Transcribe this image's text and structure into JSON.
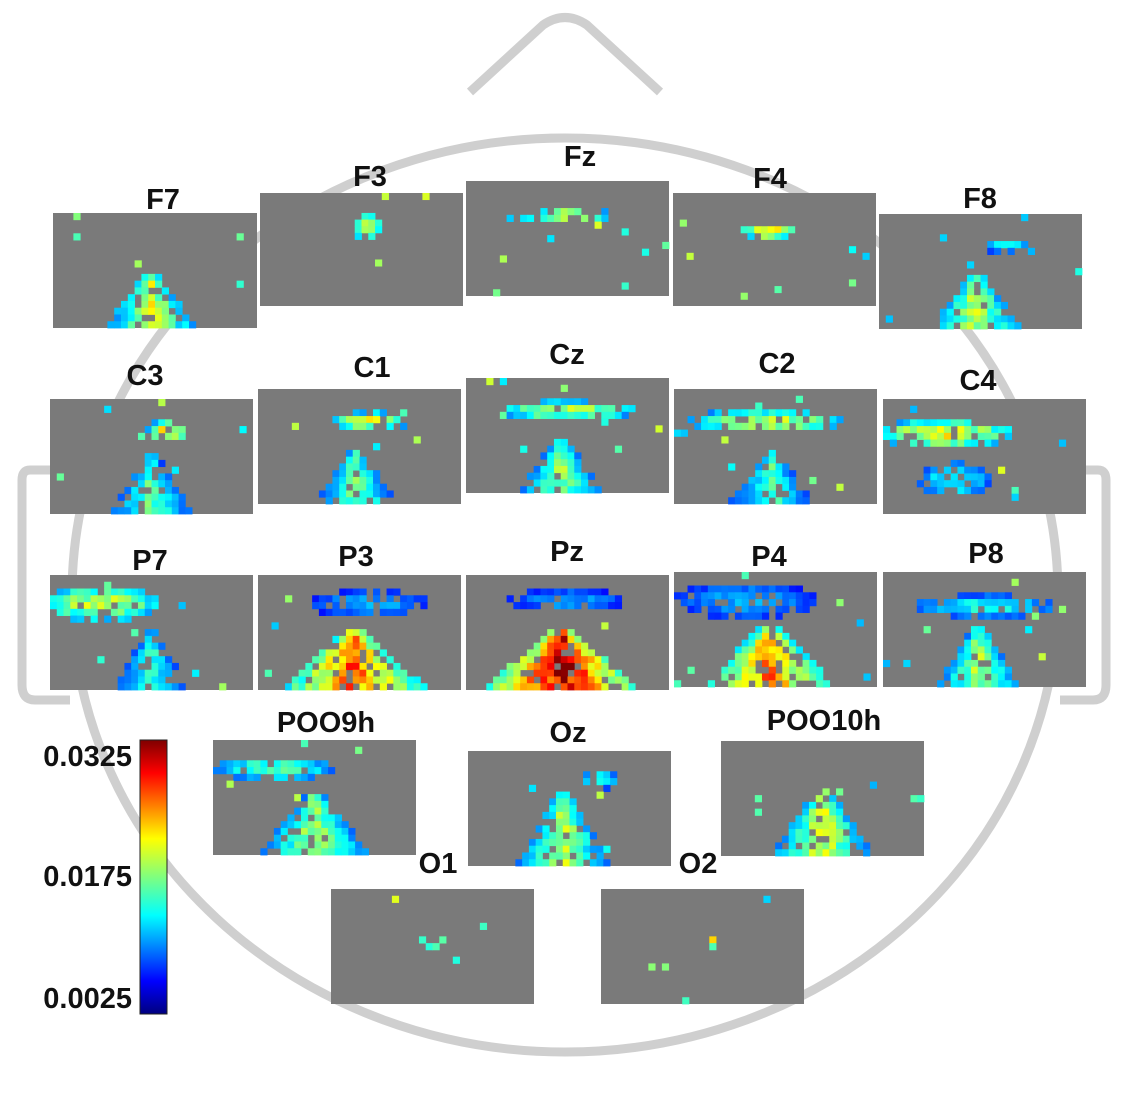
{
  "colorbar": {
    "max_label": "0.0325",
    "mid_label": "0.0175",
    "min_label": "0.0025",
    "max": 0.0325,
    "mid": 0.0175,
    "min": 0.0025,
    "colormap": "jet"
  },
  "colors": {
    "head_outline": "#cfcfcf",
    "panel_background": "#7a7a7a",
    "text": "#111111"
  },
  "channels": [
    {
      "id": "F7",
      "label": "F7"
    },
    {
      "id": "F3",
      "label": "F3"
    },
    {
      "id": "Fz",
      "label": "Fz"
    },
    {
      "id": "F4",
      "label": "F4"
    },
    {
      "id": "F8",
      "label": "F8"
    },
    {
      "id": "C3",
      "label": "C3"
    },
    {
      "id": "C1",
      "label": "C1"
    },
    {
      "id": "Cz",
      "label": "Cz"
    },
    {
      "id": "C2",
      "label": "C2"
    },
    {
      "id": "C4",
      "label": "C4"
    },
    {
      "id": "P7",
      "label": "P7"
    },
    {
      "id": "P3",
      "label": "P3"
    },
    {
      "id": "Pz",
      "label": "Pz"
    },
    {
      "id": "P4",
      "label": "P4"
    },
    {
      "id": "P8",
      "label": "P8"
    },
    {
      "id": "POO9h",
      "label": "POO9h"
    },
    {
      "id": "Oz",
      "label": "Oz"
    },
    {
      "id": "POO10h",
      "label": "POO10h"
    },
    {
      "id": "O1",
      "label": "O1"
    },
    {
      "id": "O2",
      "label": "O2"
    }
  ]
}
